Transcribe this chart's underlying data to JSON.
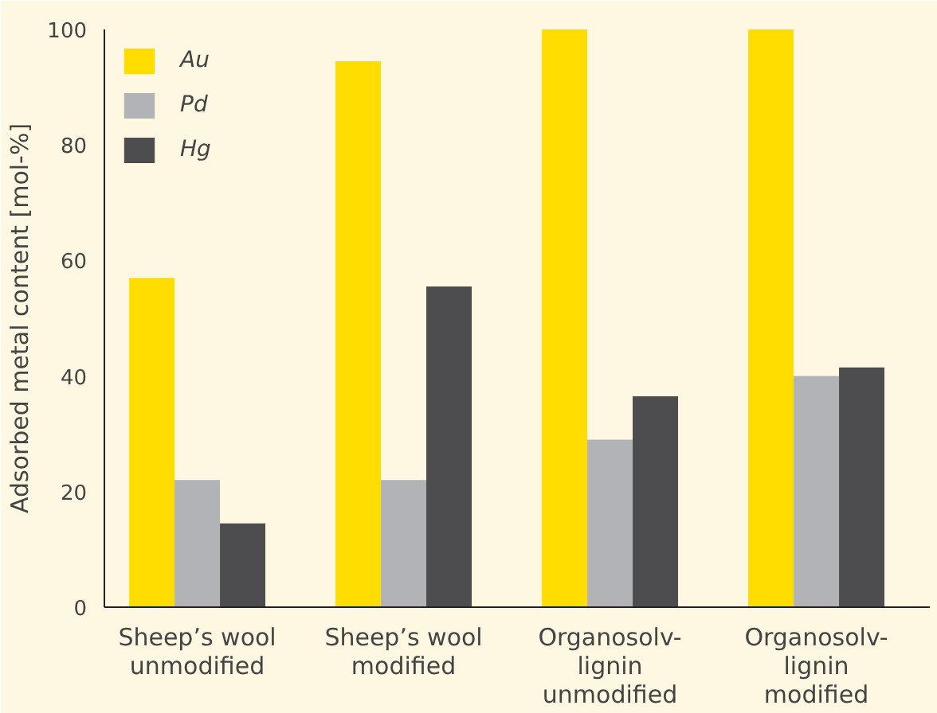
{
  "chart_data": {
    "type": "bar",
    "ylabel": "Adsorbed metal content [mol-%]",
    "categories": [
      "Sheep’s wool\nunmodified",
      "Sheep’s wool\nmodified",
      "Organosolv-\nlignin\nunmodified",
      "Organosolv-\nlignin\nmodified"
    ],
    "series": [
      {
        "name": "Au",
        "color": "#ffdd00",
        "values": [
          57,
          94.5,
          100,
          100
        ]
      },
      {
        "name": "Pd",
        "color": "#b1b3b6",
        "values": [
          22,
          22,
          29,
          40
        ]
      },
      {
        "name": "Hg",
        "color": "#4d4d4f",
        "values": [
          14.5,
          55.5,
          36.5,
          41.5
        ]
      }
    ],
    "ylim": [
      0,
      100
    ],
    "yticks": [
      0,
      20,
      40,
      60,
      80,
      100
    ],
    "grid": false,
    "legend": "top left"
  }
}
